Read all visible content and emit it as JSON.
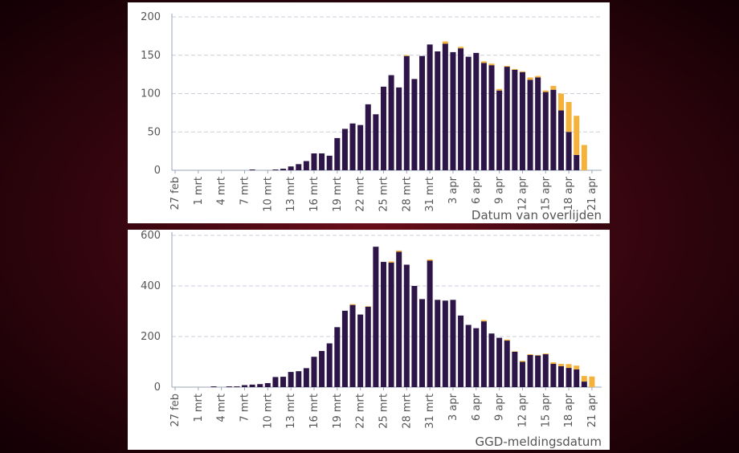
{
  "colors": {
    "primary": "#2e1548",
    "secondary": "#f4b23a",
    "grid": "#c8cfd8",
    "axis": "#9aa6b4",
    "text": "#555555"
  },
  "chart_data": [
    {
      "type": "bar",
      "stacked": true,
      "xlabel": "Datum van overlijden",
      "ylabel": "",
      "ylim": [
        0,
        200
      ],
      "yticks": [
        0,
        50,
        100,
        150,
        200
      ],
      "tick_labels": [
        "27 feb",
        "1 mrt",
        "4 mrt",
        "7 mrt",
        "10 mrt",
        "13 mrt",
        "16 mrt",
        "19 mrt",
        "22 mrt",
        "25 mrt",
        "28 mrt",
        "31 mrt",
        "3 apr",
        "6 apr",
        "9 apr",
        "12 apr",
        "15 apr",
        "18 apr",
        "21 apr"
      ],
      "days": 55,
      "series": [
        {
          "name": "primary",
          "values": [
            0,
            0,
            0,
            0,
            0,
            0,
            0,
            0,
            0,
            0,
            1,
            0,
            0,
            1,
            2,
            5,
            8,
            12,
            22,
            22,
            19,
            42,
            54,
            61,
            59,
            86,
            73,
            109,
            124,
            108,
            149,
            119,
            149,
            164,
            155,
            165,
            154,
            159,
            148,
            153,
            140,
            137,
            104,
            135,
            131,
            128,
            118,
            121,
            102,
            105,
            78,
            50,
            20,
            0,
            0
          ]
        },
        {
          "name": "secondary",
          "values": [
            0,
            0,
            0,
            0,
            0,
            0,
            0,
            0,
            0,
            0,
            0,
            0,
            0,
            0,
            0,
            0,
            0,
            0,
            0,
            0,
            0,
            0,
            0,
            0,
            0,
            0,
            0,
            0,
            0,
            0,
            1,
            0,
            0,
            0,
            0,
            3,
            0,
            2,
            0,
            0,
            2,
            2,
            2,
            1,
            1,
            1,
            3,
            2,
            2,
            5,
            22,
            39,
            51,
            33,
            0
          ]
        }
      ]
    },
    {
      "type": "bar",
      "stacked": true,
      "xlabel": "GGD-meldingsdatum",
      "ylabel": "",
      "ylim": [
        0,
        600
      ],
      "yticks": [
        0,
        200,
        400,
        600
      ],
      "tick_labels": [
        "27 feb",
        "1 mrt",
        "4 mrt",
        "7 mrt",
        "10 mrt",
        "13 mrt",
        "16 mrt",
        "19 mrt",
        "22 mrt",
        "25 mrt",
        "28 mrt",
        "31 mrt",
        "3 apr",
        "6 apr",
        "9 apr",
        "12 apr",
        "15 apr",
        "18 apr",
        "21 apr"
      ],
      "days": 55,
      "series": [
        {
          "name": "primary",
          "values": [
            0,
            0,
            0,
            0,
            0,
            3,
            0,
            3,
            3,
            8,
            10,
            12,
            16,
            40,
            41,
            60,
            63,
            75,
            120,
            143,
            173,
            237,
            302,
            325,
            287,
            318,
            555,
            495,
            492,
            535,
            484,
            400,
            348,
            500,
            345,
            342,
            345,
            283,
            246,
            233,
            260,
            212,
            195,
            184,
            140,
            100,
            127,
            125,
            130,
            92,
            83,
            76,
            70,
            22,
            0
          ]
        },
        {
          "name": "secondary",
          "values": [
            0,
            0,
            0,
            0,
            0,
            0,
            0,
            0,
            0,
            0,
            0,
            0,
            0,
            0,
            0,
            0,
            0,
            0,
            0,
            0,
            0,
            0,
            0,
            3,
            0,
            2,
            0,
            0,
            5,
            5,
            0,
            0,
            0,
            5,
            0,
            0,
            0,
            0,
            0,
            0,
            5,
            0,
            0,
            4,
            2,
            4,
            3,
            2,
            3,
            6,
            9,
            15,
            15,
            22,
            42
          ]
        }
      ]
    }
  ]
}
